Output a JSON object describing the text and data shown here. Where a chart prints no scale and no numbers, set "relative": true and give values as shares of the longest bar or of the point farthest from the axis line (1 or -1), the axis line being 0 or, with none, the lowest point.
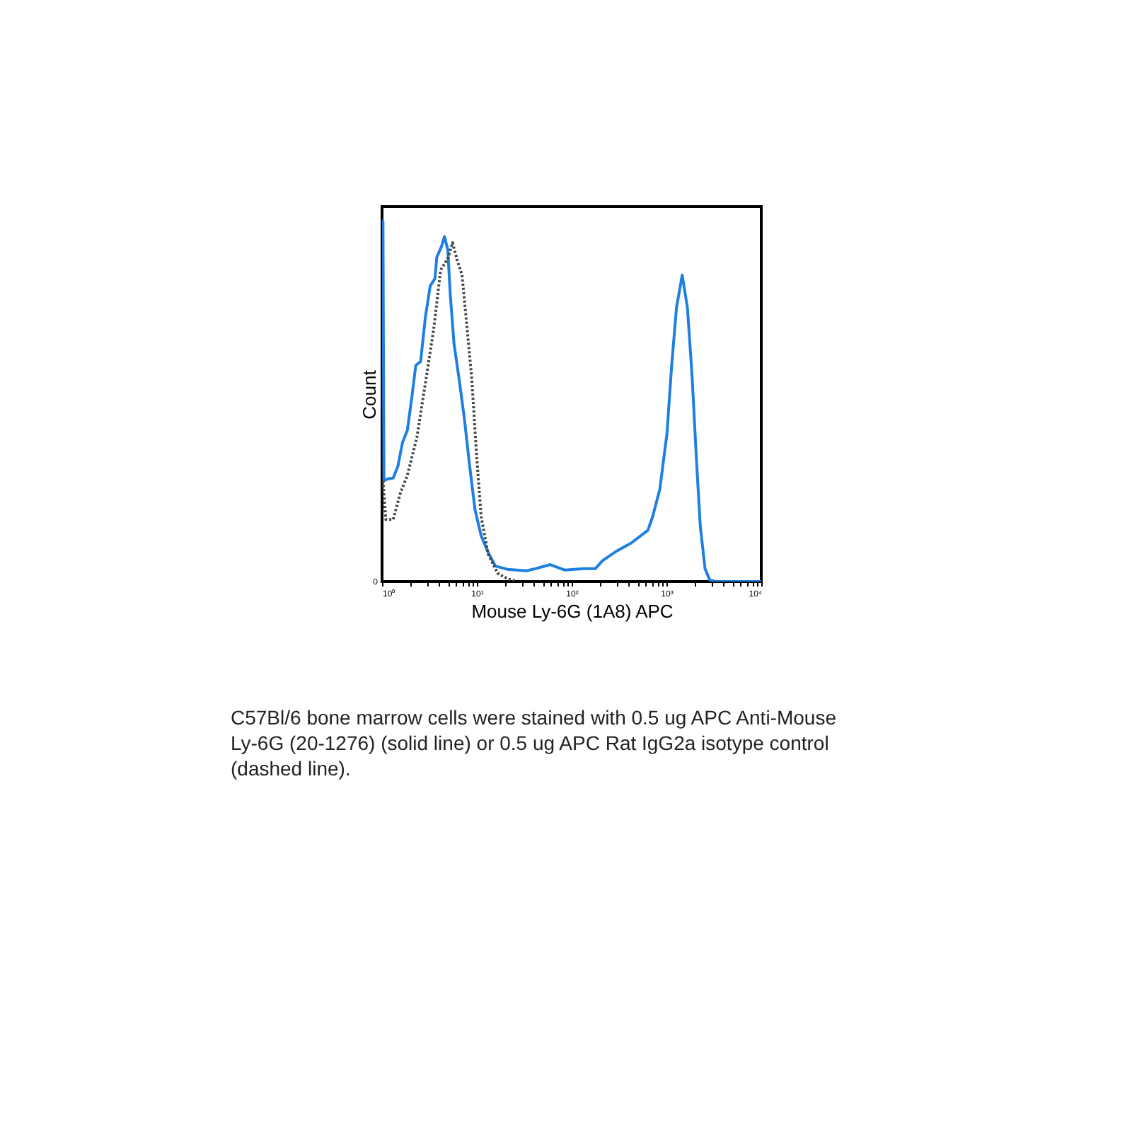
{
  "chart_data": {
    "type": "line",
    "relative": true,
    "xlabel": "Mouse Ly-6G (1A8) APC",
    "ylabel": "Count",
    "log": "x",
    "xlim": [
      1,
      10000
    ],
    "xticks": [
      {
        "value": 1,
        "label": "10⁰"
      },
      {
        "value": 2,
        "label": null
      },
      {
        "value": 3,
        "label": null
      },
      {
        "value": 4,
        "label": null
      },
      {
        "value": 5,
        "label": null
      },
      {
        "value": 6,
        "label": null
      },
      {
        "value": 7,
        "label": null
      },
      {
        "value": 8,
        "label": null
      },
      {
        "value": 9,
        "label": null
      },
      {
        "value": 10,
        "label": "10¹"
      },
      {
        "value": 20,
        "label": null
      },
      {
        "value": 30,
        "label": null
      },
      {
        "value": 40,
        "label": null
      },
      {
        "value": 50,
        "label": null
      },
      {
        "value": 60,
        "label": null
      },
      {
        "value": 70,
        "label": null
      },
      {
        "value": 80,
        "label": null
      },
      {
        "value": 90,
        "label": null
      },
      {
        "value": 100,
        "label": "10²"
      },
      {
        "value": 200,
        "label": null
      },
      {
        "value": 300,
        "label": null
      },
      {
        "value": 400,
        "label": null
      },
      {
        "value": 500,
        "label": null
      },
      {
        "value": 600,
        "label": null
      },
      {
        "value": 700,
        "label": null
      },
      {
        "value": 800,
        "label": null
      },
      {
        "value": 900,
        "label": null
      },
      {
        "value": 1000,
        "label": "10³"
      },
      {
        "value": 2000,
        "label": null
      },
      {
        "value": 3000,
        "label": null
      },
      {
        "value": 4000,
        "label": null
      },
      {
        "value": 5000,
        "label": null
      },
      {
        "value": 6000,
        "label": null
      },
      {
        "value": 7000,
        "label": null
      },
      {
        "value": 8000,
        "label": null
      },
      {
        "value": 9000,
        "label": null
      },
      {
        "value": 10000,
        "label": "10⁴"
      }
    ],
    "marker": "none",
    "grid": false,
    "legend": false,
    "series": [
      {
        "color": "#1f7fe0",
        "line_style": "solid",
        "x": [
          1,
          1.023,
          1.047,
          1.16,
          1.31,
          1.47,
          1.64,
          1.85,
          2.07,
          2.27,
          2.55,
          2.87,
          3.22,
          3.61,
          3.78,
          4.25,
          4.55,
          4.94,
          5.23,
          5.74,
          6.59,
          7.4,
          8.31,
          9.55,
          11.1,
          13.2,
          15.7,
          21.0,
          33.3,
          42.0,
          59.4,
          84.1,
          134,
          178,
          212,
          300,
          425,
          535,
          637,
          715,
          851,
          1012,
          1135,
          1276,
          1466,
          1663,
          1866,
          2075,
          2275,
          2553,
          2864,
          3412,
          10000
        ],
        "values": [
          1.0,
          1.0,
          0.28,
          0.285,
          0.287,
          0.32,
          0.385,
          0.42,
          0.515,
          0.6,
          0.61,
          0.735,
          0.82,
          0.84,
          0.9,
          0.93,
          0.957,
          0.92,
          0.8,
          0.66,
          0.55,
          0.45,
          0.33,
          0.2,
          0.127,
          0.08,
          0.043,
          0.034,
          0.03,
          0.036,
          0.047,
          0.032,
          0.036,
          0.036,
          0.058,
          0.085,
          0.107,
          0.127,
          0.142,
          0.18,
          0.256,
          0.41,
          0.6,
          0.76,
          0.85,
          0.76,
          0.567,
          0.334,
          0.153,
          0.036,
          0.004,
          0,
          0
        ]
      },
      {
        "color": "#444444",
        "line_style": "dotted",
        "x": [
          1.023,
          1.096,
          1.31,
          1.55,
          1.85,
          2.33,
          2.93,
          3.49,
          4.15,
          4.94,
          5.54,
          6.22,
          6.98,
          7.84,
          8.81,
          9.88,
          11.1,
          13.2,
          16.6,
          21.0,
          26.4
        ],
        "values": [
          0.28,
          0.172,
          0.172,
          0.243,
          0.295,
          0.4,
          0.567,
          0.696,
          0.864,
          0.896,
          0.94,
          0.89,
          0.85,
          0.71,
          0.567,
          0.36,
          0.18,
          0.075,
          0.023,
          0.008,
          0
        ]
      }
    ],
    "annotations": [
      "0",
      "C57Bl/6 bone marrow cells were stained with 0.5 ug APC Anti-Mouse Ly-6G (20-1276) (solid line) or 0.5 ug APC Rat IgG2a isotype control (dashed line)."
    ]
  }
}
